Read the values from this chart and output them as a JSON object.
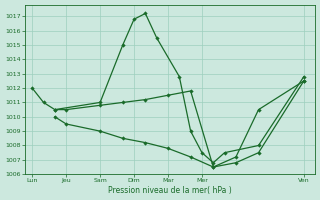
{
  "xlabel": "Pression niveau de la mer( hPa )",
  "bg_color": "#cce8de",
  "line_color": "#1a6b2a",
  "grid_color": "#9ecfbe",
  "ylim": [
    1006,
    1017.8
  ],
  "yticks": [
    1006,
    1007,
    1008,
    1009,
    1010,
    1011,
    1012,
    1013,
    1014,
    1015,
    1016,
    1017
  ],
  "x_labels": [
    "Lun",
    "Jeu",
    "Sam",
    "Dim",
    "Mar",
    "Mer",
    "Ven"
  ],
  "x_ticks": [
    0,
    18,
    36,
    54,
    72,
    90,
    144
  ],
  "xlim": [
    -4,
    150
  ],
  "series1_x": [
    0,
    6,
    12,
    36,
    48,
    54,
    60,
    66,
    78,
    84,
    90,
    96,
    102,
    120,
    144
  ],
  "series1_y": [
    1012.0,
    1011.0,
    1010.5,
    1011.0,
    1015.0,
    1016.8,
    1017.2,
    1015.5,
    1012.8,
    1009.0,
    1007.5,
    1006.8,
    1007.5,
    1008.0,
    1012.8
  ],
  "series2_x": [
    12,
    18,
    36,
    48,
    60,
    72,
    84,
    96,
    108,
    120,
    144
  ],
  "series2_y": [
    1010.5,
    1010.5,
    1010.8,
    1011.0,
    1011.2,
    1011.5,
    1011.8,
    1006.5,
    1007.2,
    1010.5,
    1012.5
  ],
  "series3_x": [
    12,
    18,
    36,
    48,
    60,
    72,
    84,
    96,
    108,
    120,
    144
  ],
  "series3_y": [
    1010.0,
    1009.5,
    1009.0,
    1008.5,
    1008.2,
    1007.8,
    1007.2,
    1006.5,
    1006.8,
    1007.5,
    1012.5
  ]
}
